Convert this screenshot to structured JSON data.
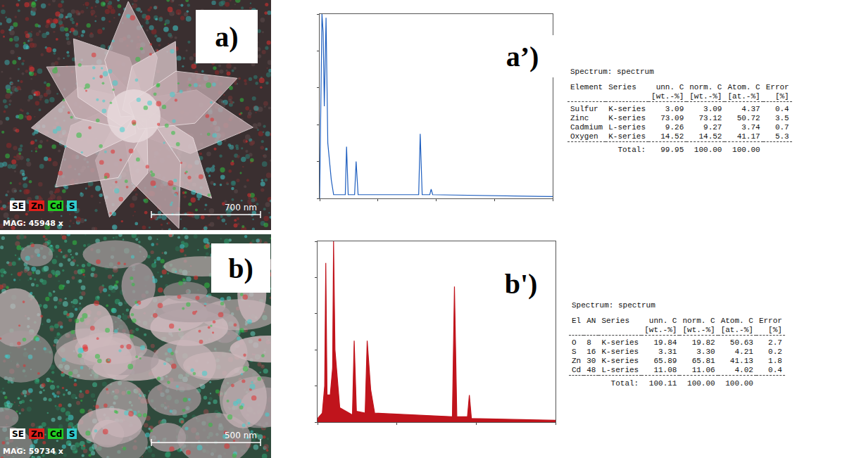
{
  "figure": {
    "images": [
      {
        "label": "a)",
        "legend": [
          {
            "text": "SE",
            "color": "#ffffff"
          },
          {
            "text": "Zn",
            "color": "#e0201c"
          },
          {
            "text": "Cd",
            "color": "#22cc22"
          },
          {
            "text": "S",
            "color": "#33cccc"
          }
        ],
        "magnification": "MAG: 45948 x",
        "scale_bar": "700 nm"
      },
      {
        "label": "b)",
        "legend": [
          {
            "text": "SE",
            "color": "#ffffff"
          },
          {
            "text": "Zn",
            "color": "#e0201c"
          },
          {
            "text": "Cd",
            "color": "#22cc22"
          },
          {
            "text": "S",
            "color": "#33cccc"
          }
        ],
        "magnification": "MAG: 59734 x",
        "scale_bar": "500 nm"
      }
    ],
    "spectrum_labels": [
      "a’)",
      "b')"
    ],
    "tables": [
      {
        "title": "Spectrum: spectrum",
        "columns": [
          {
            "name": "Element"
          },
          {
            "name": "Series"
          },
          {
            "name": "unn. C",
            "unit": "[wt.-%]"
          },
          {
            "name": "norm. C",
            "unit": "[wt.-%]"
          },
          {
            "name": "Atom. C",
            "unit": "[at.-%]"
          },
          {
            "name": "Error",
            "unit": "[%]"
          }
        ],
        "rows": [
          [
            "Sulfur",
            "K-series",
            "3.09",
            "3.09",
            "4.37",
            "0.4"
          ],
          [
            "Zinc",
            "K-series",
            "73.09",
            "73.12",
            "50.72",
            "3.5"
          ],
          [
            "Cadmium",
            "L-series",
            "9.26",
            "9.27",
            "3.74",
            "0.7"
          ],
          [
            "Oxygen",
            "K-series",
            "14.52",
            "14.52",
            "41.17",
            "5.3"
          ]
        ],
        "total": {
          "label": "Total:",
          "values": [
            "99.95",
            "100.00",
            "100.00"
          ]
        }
      },
      {
        "title": "Spectrum: spectrum",
        "columns": [
          {
            "name": "El"
          },
          {
            "name": "AN"
          },
          {
            "name": "Series"
          },
          {
            "name": "unn. C",
            "unit": "[wt.-%]"
          },
          {
            "name": "norm. C",
            "unit": "[wt.-%]"
          },
          {
            "name": "Atom. C",
            "unit": "[at.-%]"
          },
          {
            "name": "Error",
            "unit": "[%]"
          }
        ],
        "rows": [
          [
            "O",
            "8",
            "K-series",
            "19.84",
            "19.82",
            "50.63",
            "2.7"
          ],
          [
            "S",
            "16",
            "K-series",
            "3.31",
            "3.30",
            "4.21",
            "0.2"
          ],
          [
            "Zn",
            "30",
            "K-series",
            "65.89",
            "65.81",
            "41.13",
            "1.8"
          ],
          [
            "Cd",
            "48",
            "L-series",
            "11.08",
            "11.06",
            "4.02",
            "0.4"
          ]
        ],
        "total": {
          "label": "Total:",
          "values": [
            "100.11",
            "100.00",
            "100.00"
          ]
        }
      }
    ]
  },
  "chart_data": [
    {
      "type": "line",
      "tick_labels": false,
      "grid": false,
      "xlim": [
        0,
        20
      ],
      "ylim": [
        0,
        1
      ],
      "series": [
        {
          "color": "#1f5fbf",
          "x": [
            0,
            0.2,
            0.3,
            0.4,
            0.55,
            0.7,
            1.0,
            1.2,
            2.2,
            2.31,
            2.45,
            3.0,
            3.13,
            3.3,
            8.5,
            8.63,
            8.8,
            9.45,
            9.57,
            9.7,
            20
          ],
          "values": [
            0,
            1.0,
            0.9,
            0.5,
            0.98,
            0.3,
            0.1,
            0.02,
            0.02,
            0.28,
            0.02,
            0.02,
            0.2,
            0.02,
            0.02,
            0.35,
            0.02,
            0.02,
            0.05,
            0.02,
            0.01
          ]
        }
      ]
    },
    {
      "type": "area",
      "tick_labels": false,
      "grid": false,
      "xlim": [
        0,
        15
      ],
      "ylim": [
        0,
        1
      ],
      "series": [
        {
          "color": "#c0141c",
          "x": [
            0,
            0.3,
            0.45,
            0.52,
            0.6,
            0.8,
            0.95,
            1.01,
            1.1,
            1.4,
            2.2,
            2.31,
            2.45,
            3.0,
            3.13,
            3.35,
            3.6,
            8.5,
            8.63,
            8.78,
            9.45,
            9.57,
            9.7,
            15
          ],
          "values": [
            0.02,
            0.05,
            0.2,
            0.88,
            0.15,
            0.15,
            0.3,
            1.0,
            0.4,
            0.08,
            0.04,
            0.45,
            0.06,
            0.05,
            0.45,
            0.18,
            0.05,
            0.03,
            0.75,
            0.03,
            0.03,
            0.15,
            0.02,
            0.01
          ]
        }
      ]
    }
  ]
}
